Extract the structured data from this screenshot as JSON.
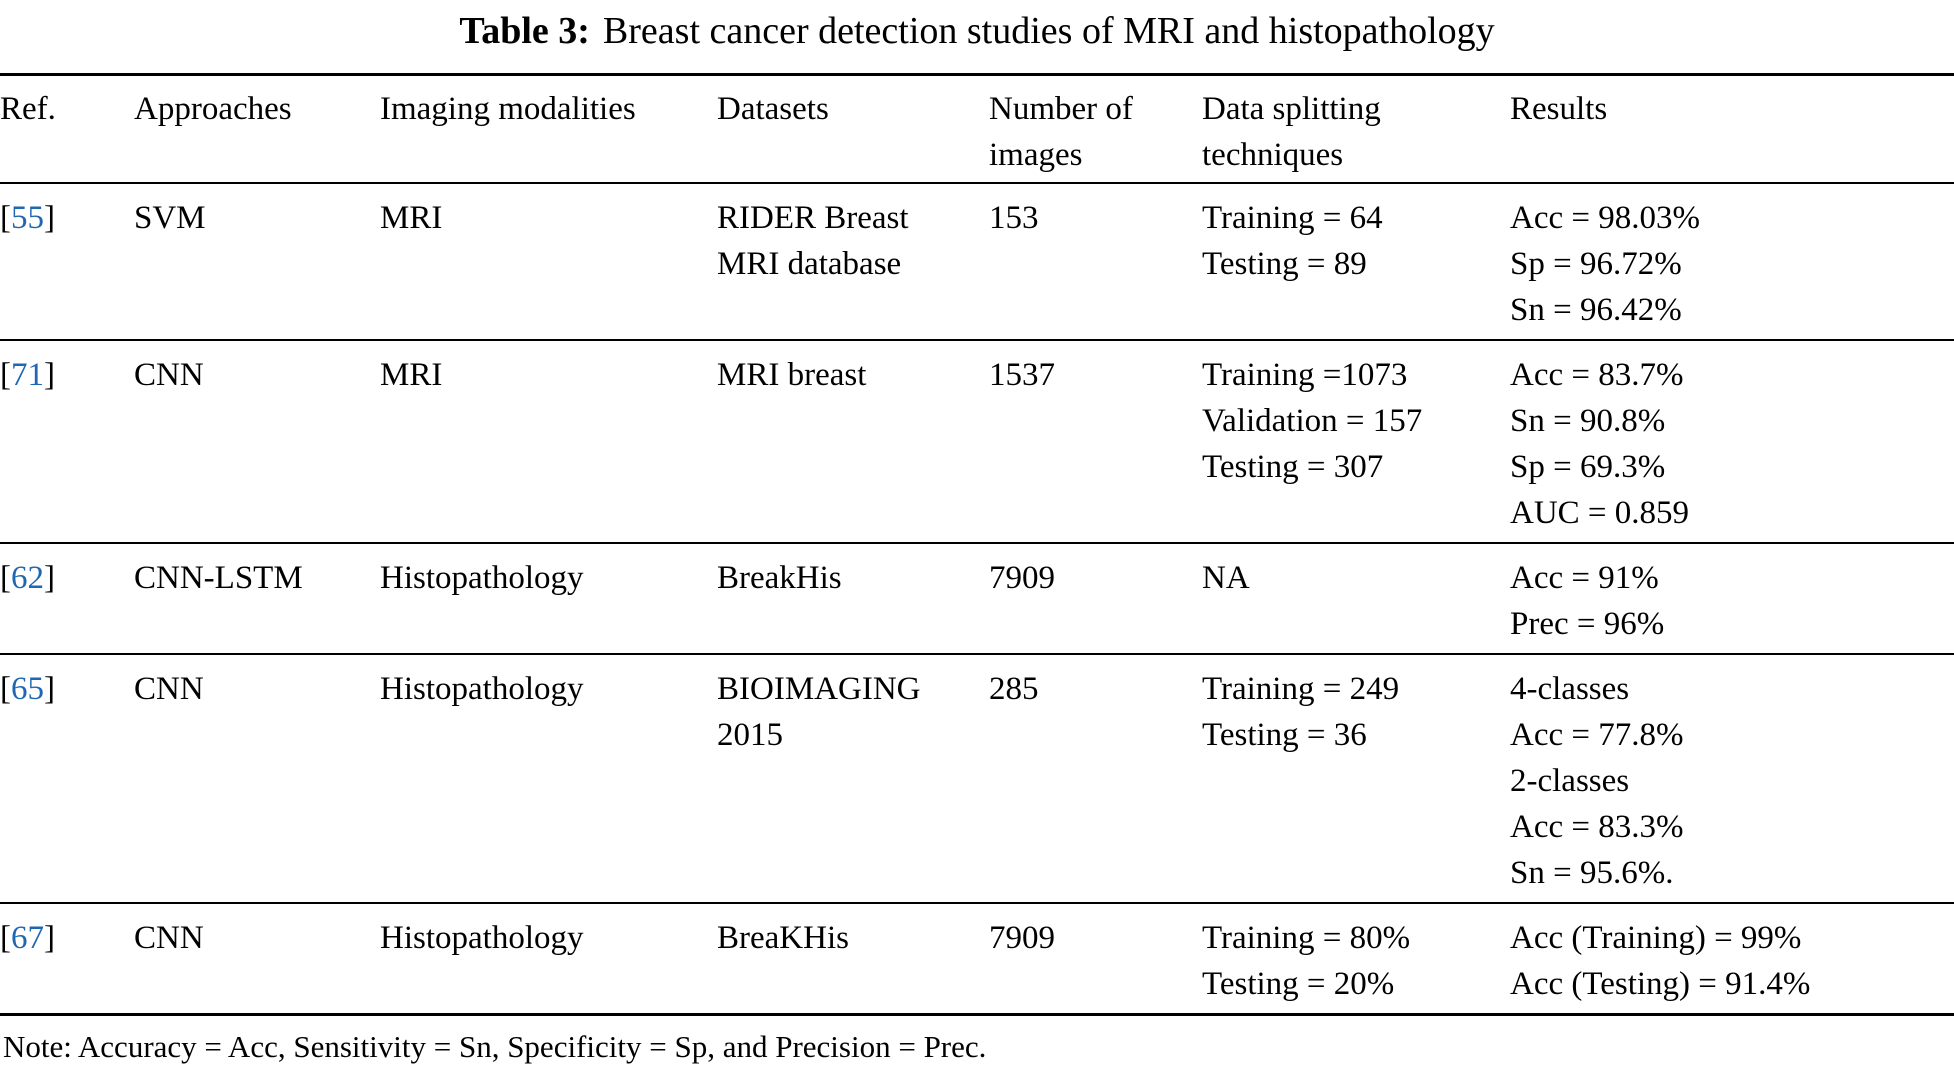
{
  "title": {
    "label": "Table 3:",
    "text": "Breast cancer detection studies of MRI and histopathology"
  },
  "columns": [
    "Ref.",
    "Approaches",
    "Imaging modalities",
    "Datasets",
    "Number of images",
    "Data splitting techniques",
    "Results"
  ],
  "ref_brackets": {
    "open": "[",
    "close": "]"
  },
  "rows": [
    {
      "ref": "55",
      "approach": "SVM",
      "modality": "MRI",
      "dataset": [
        "RIDER Breast",
        "MRI database"
      ],
      "num_images": "153",
      "splitting": [
        "Training = 64",
        "Testing = 89"
      ],
      "results": [
        "Acc = 98.03%",
        "Sp = 96.72%",
        "Sn = 96.42%"
      ]
    },
    {
      "ref": "71",
      "approach": "CNN",
      "modality": "MRI",
      "dataset": [
        "MRI breast"
      ],
      "num_images": "1537",
      "splitting": [
        "Training =1073",
        "Validation = 157",
        "Testing = 307"
      ],
      "results": [
        "Acc = 83.7%",
        "Sn = 90.8%",
        "Sp = 69.3%",
        "AUC = 0.859"
      ]
    },
    {
      "ref": "62",
      "approach": "CNN-LSTM",
      "modality": "Histopathology",
      "dataset": [
        "BreakHis"
      ],
      "num_images": "7909",
      "splitting": [
        "NA"
      ],
      "results": [
        "Acc = 91%",
        "Prec = 96%"
      ]
    },
    {
      "ref": "65",
      "approach": "CNN",
      "modality": "Histopathology",
      "dataset": [
        "BIOIMAGING",
        "2015"
      ],
      "num_images": "285",
      "splitting": [
        "Training = 249",
        "Testing = 36"
      ],
      "results": [
        "4-classes",
        "Acc = 77.8%",
        "2-classes",
        "Acc = 83.3%",
        "Sn = 95.6%."
      ]
    },
    {
      "ref": "67",
      "approach": "CNN",
      "modality": "Histopathology",
      "dataset": [
        "BreaKHis"
      ],
      "num_images": "7909",
      "splitting": [
        "Training = 80%",
        "Testing = 20%"
      ],
      "results": [
        "Acc (Training) = 99%",
        "Acc (Testing) = 91.4%"
      ]
    }
  ],
  "note": "Note: Accuracy = Acc, Sensitivity = Sn, Specificity = Sp, and Precision = Prec.",
  "colors": {
    "ref_link": "#1f66b3",
    "text": "#000000",
    "background": "#ffffff"
  }
}
